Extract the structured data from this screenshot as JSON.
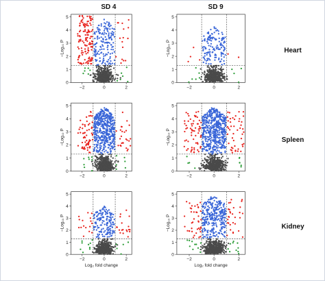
{
  "column_titles": [
    "SD 4",
    "SD 9"
  ],
  "row_labels": [
    "Heart",
    "Spleen",
    "Kidney"
  ],
  "x_axis_label": "Log₂ fold change",
  "y_axis_label": "−Log₁₀ P",
  "colors": {
    "red": "#e8241e",
    "blue": "#3a66d8",
    "green": "#2f9e3a",
    "grey": "#4a4a4a"
  },
  "chart_data": [
    {
      "type": "scatter",
      "row": "Heart",
      "column": "SD 4",
      "xlim": [
        -3,
        2.5
      ],
      "ylim": [
        0,
        5.2
      ],
      "x_ticks": [
        -2,
        0,
        2
      ],
      "y_ticks": [
        0,
        1,
        2,
        3,
        4,
        5
      ],
      "fc_threshold": [
        -1,
        1
      ],
      "p_threshold": 1.3,
      "groups": {
        "grey": 520,
        "blue": 170,
        "red": 150,
        "green": 12
      },
      "red_side": "left",
      "max_y": 5.0
    },
    {
      "type": "scatter",
      "row": "Heart",
      "column": "SD 9",
      "xlim": [
        -3,
        2.5
      ],
      "ylim": [
        0,
        5.2
      ],
      "x_ticks": [
        -2,
        0,
        2
      ],
      "y_ticks": [
        0,
        1,
        2,
        3,
        4,
        5
      ],
      "fc_threshold": [
        -1,
        1
      ],
      "p_threshold": 1.3,
      "groups": {
        "grey": 520,
        "blue": 150,
        "red": 6,
        "green": 10
      },
      "red_side": "both",
      "max_y": 4.3
    },
    {
      "type": "scatter",
      "row": "Spleen",
      "column": "SD 4",
      "xlim": [
        -3,
        2.5
      ],
      "ylim": [
        0,
        5.2
      ],
      "x_ticks": [
        -2,
        0,
        2
      ],
      "y_ticks": [
        0,
        1,
        2,
        3,
        4,
        5
      ],
      "fc_threshold": [
        -1,
        1
      ],
      "p_threshold": 1.3,
      "groups": {
        "grey": 520,
        "blue": 480,
        "red": 90,
        "green": 14
      },
      "red_side": "both",
      "max_y": 5.0
    },
    {
      "type": "scatter",
      "row": "Spleen",
      "column": "SD 9",
      "xlim": [
        -3,
        2.5
      ],
      "ylim": [
        0,
        5.2
      ],
      "x_ticks": [
        -2,
        0,
        2
      ],
      "y_ticks": [
        0,
        1,
        2,
        3,
        4,
        5
      ],
      "fc_threshold": [
        -1,
        1
      ],
      "p_threshold": 1.3,
      "groups": {
        "grey": 520,
        "blue": 520,
        "red": 110,
        "green": 10
      },
      "red_side": "both",
      "max_y": 5.0
    },
    {
      "type": "scatter",
      "row": "Kidney",
      "column": "SD 4",
      "xlim": [
        -3,
        2.5
      ],
      "ylim": [
        0,
        5.2
      ],
      "x_ticks": [
        -2,
        0,
        2
      ],
      "y_ticks": [
        0,
        1,
        2,
        3,
        4,
        5
      ],
      "fc_threshold": [
        -1,
        1
      ],
      "p_threshold": 1.3,
      "groups": {
        "grey": 520,
        "blue": 160,
        "red": 35,
        "green": 14
      },
      "red_side": "both",
      "max_y": 4.0
    },
    {
      "type": "scatter",
      "row": "Kidney",
      "column": "SD 9",
      "xlim": [
        -3,
        2.5
      ],
      "ylim": [
        0,
        5.2
      ],
      "x_ticks": [
        -2,
        0,
        2
      ],
      "y_ticks": [
        0,
        1,
        2,
        3,
        4,
        5
      ],
      "fc_threshold": [
        -1,
        1
      ],
      "p_threshold": 1.3,
      "groups": {
        "grey": 520,
        "blue": 300,
        "red": 70,
        "green": 20
      },
      "red_side": "both",
      "max_y": 5.0
    }
  ]
}
